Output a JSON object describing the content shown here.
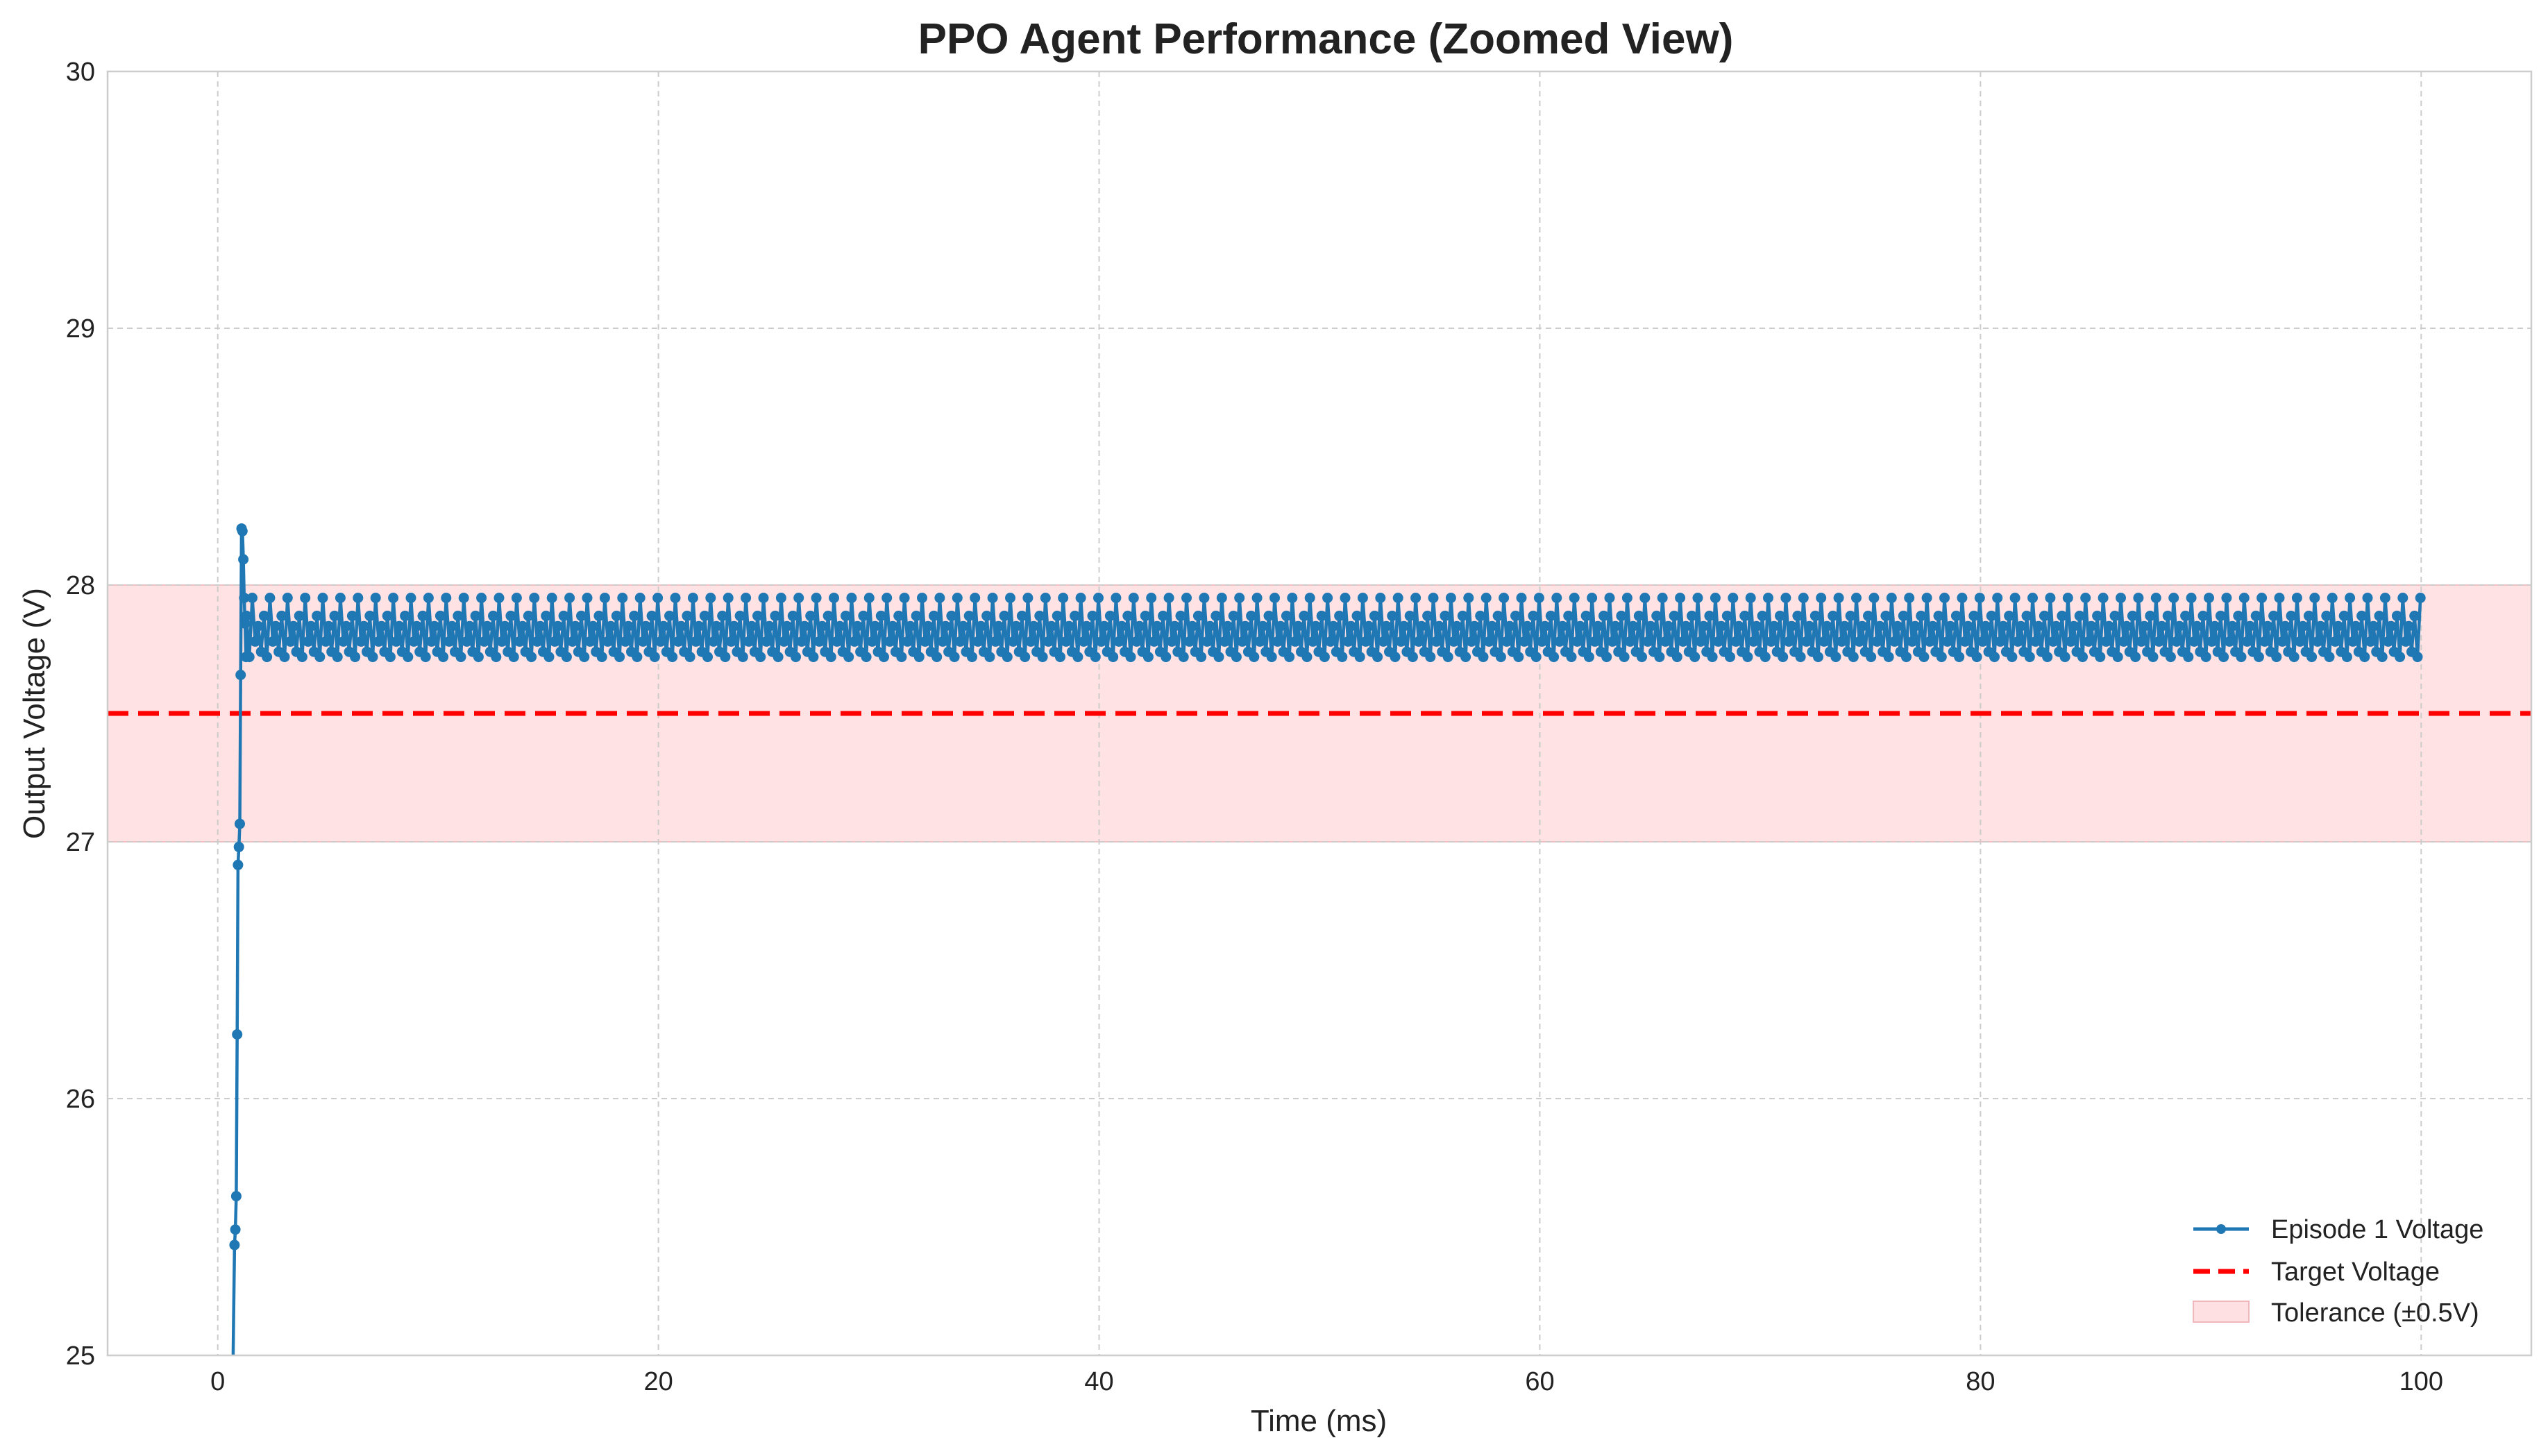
{
  "chart_data": {
    "type": "line",
    "title": "PPO Agent Performance (Zoomed View)",
    "xlabel": "Time (ms)",
    "ylabel": "Output Voltage (V)",
    "xlim": [
      -5,
      105
    ],
    "ylim": [
      25,
      30
    ],
    "xticks": [
      0,
      20,
      40,
      60,
      80,
      100
    ],
    "yticks": [
      25,
      26,
      27,
      28,
      29,
      30
    ],
    "grid": true,
    "legend_position": "bottom-right",
    "series": [
      {
        "name": "Episode 1 Voltage",
        "color": "#1f77b4",
        "style": "line-with-markers",
        "startup": [
          [
            0.7,
            25.0
          ],
          [
            0.76,
            25.43
          ],
          [
            0.8,
            25.49
          ],
          [
            0.84,
            25.62
          ],
          [
            0.88,
            26.25
          ],
          [
            0.92,
            26.91
          ],
          [
            0.96,
            26.98
          ],
          [
            1.0,
            27.07
          ],
          [
            1.04,
            27.65
          ],
          [
            1.08,
            28.22
          ],
          [
            1.12,
            28.21
          ],
          [
            1.16,
            28.1
          ],
          [
            1.2,
            27.95
          ],
          [
            1.24,
            27.85
          ],
          [
            1.28,
            27.72
          ]
        ],
        "steady_state": {
          "x_start": 1.3,
          "x_end": 100,
          "period_ms": 0.8,
          "pattern": [
            27.88,
            27.72,
            27.95,
            27.78,
            27.84,
            27.74
          ]
        }
      },
      {
        "name": "Target Voltage",
        "color": "#ff0000",
        "style": "dashed",
        "value": 27.5
      },
      {
        "name": "Tolerance (±0.5V)",
        "color": "#ffe0e2",
        "style": "band",
        "range": [
          27.0,
          28.0
        ]
      }
    ]
  }
}
